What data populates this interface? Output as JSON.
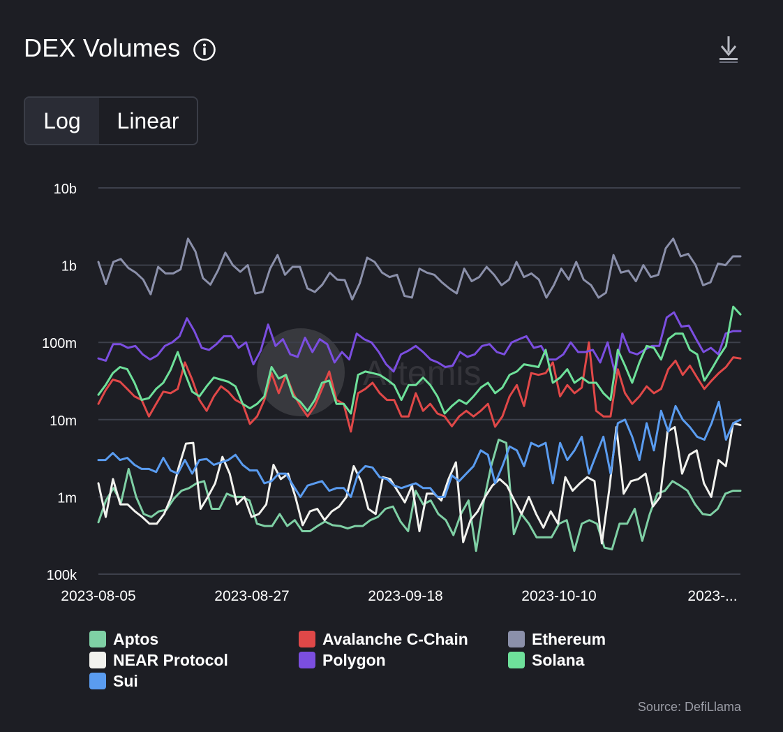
{
  "header": {
    "title": "DEX Volumes",
    "info_icon": "info-circle-icon",
    "download_icon": "download-icon"
  },
  "scale_toggle": {
    "options": [
      "Log",
      "Linear"
    ],
    "selected": "Log"
  },
  "watermark": "Artemis",
  "source": "Source: DefiLlama",
  "chart_data": {
    "type": "line",
    "y_scale": "log",
    "ylim": [
      100000,
      10000000000
    ],
    "y_ticks": [
      {
        "value": 10000000000,
        "label": "10b"
      },
      {
        "value": 1000000000,
        "label": "1b"
      },
      {
        "value": 100000000,
        "label": "100m"
      },
      {
        "value": 10000000,
        "label": "10m"
      },
      {
        "value": 1000000,
        "label": "1m"
      },
      {
        "value": 100000,
        "label": "100k"
      }
    ],
    "x_start": "2023-08-05",
    "x_end": "2023-11-05",
    "x_ticks": [
      {
        "value": "2023-08-05",
        "label": "2023-08-05"
      },
      {
        "value": "2023-08-27",
        "label": "2023-08-27"
      },
      {
        "value": "2023-09-18",
        "label": "2023-09-18"
      },
      {
        "value": "2023-10-10",
        "label": "2023-10-10"
      },
      {
        "value": "2023-11-01",
        "label": "2023-..."
      }
    ],
    "grid": true,
    "legend_position": "bottom",
    "series": [
      {
        "name": "Aptos",
        "color": "#7fd0a5",
        "values": [
          470000,
          900000,
          1300000,
          850000,
          2300000,
          1000000,
          600000,
          550000,
          650000,
          680000,
          950000,
          1200000,
          1300000,
          1500000,
          1600000,
          700000,
          700000,
          1100000,
          1000000,
          1000000,
          900000,
          450000,
          420000,
          420000,
          600000,
          420000,
          500000,
          360000,
          360000,
          420000,
          480000,
          430000,
          420000,
          390000,
          420000,
          420000,
          500000,
          550000,
          700000,
          750000,
          480000,
          360000,
          1200000,
          800000,
          900000,
          600000,
          500000,
          320000,
          600000,
          900000,
          200000,
          850000,
          2500000,
          5500000,
          5000000,
          330000,
          600000,
          450000,
          300000,
          300000,
          300000,
          450000,
          500000,
          200000,
          450000,
          500000,
          450000,
          220000,
          210000,
          450000,
          450000,
          700000,
          270000,
          600000,
          1100000,
          1200000,
          1600000,
          1400000,
          1200000,
          800000,
          600000,
          580000,
          700000,
          1100000,
          1200000,
          1200000
        ]
      },
      {
        "name": "Avalanche C-Chain",
        "color": "#e04848",
        "values": [
          16000000,
          24000000,
          33000000,
          31000000,
          25000000,
          20000000,
          18000000,
          11000000,
          16000000,
          23000000,
          22000000,
          25000000,
          55000000,
          33000000,
          18000000,
          13000000,
          20000000,
          27000000,
          23000000,
          18000000,
          16000000,
          8800000,
          11000000,
          18000000,
          40000000,
          22000000,
          38000000,
          22000000,
          15000000,
          11000000,
          15000000,
          25000000,
          42000000,
          18000000,
          16000000,
          7000000,
          22000000,
          25000000,
          30000000,
          22000000,
          18000000,
          18000000,
          11000000,
          11000000,
          22000000,
          13000000,
          16000000,
          12000000,
          11000000,
          8200000,
          11000000,
          13000000,
          11000000,
          13000000,
          16000000,
          8100000,
          11000000,
          20000000,
          28000000,
          15000000,
          40000000,
          38000000,
          40000000,
          55000000,
          20000000,
          28000000,
          22000000,
          26000000,
          100000000,
          13000000,
          11000000,
          11000000,
          45000000,
          22000000,
          16000000,
          20000000,
          27000000,
          22000000,
          25000000,
          45000000,
          58000000,
          38000000,
          50000000,
          35000000,
          25000000,
          32000000,
          40000000,
          48000000,
          64000000,
          62000000
        ]
      },
      {
        "name": "Ethereum",
        "color": "#8b90aa",
        "values": [
          1100000000,
          570000000,
          1100000000,
          1200000000,
          920000000,
          800000000,
          650000000,
          420000000,
          950000000,
          780000000,
          780000000,
          880000000,
          2200000000,
          1500000000,
          680000000,
          560000000,
          850000000,
          1450000000,
          1000000000,
          820000000,
          1000000000,
          430000000,
          450000000,
          900000000,
          1350000000,
          750000000,
          950000000,
          950000000,
          500000000,
          450000000,
          560000000,
          800000000,
          650000000,
          640000000,
          360000000,
          580000000,
          1250000000,
          1100000000,
          800000000,
          700000000,
          750000000,
          400000000,
          380000000,
          900000000,
          800000000,
          750000000,
          600000000,
          500000000,
          430000000,
          900000000,
          620000000,
          700000000,
          950000000,
          750000000,
          550000000,
          650000000,
          1100000000,
          700000000,
          780000000,
          650000000,
          380000000,
          550000000,
          900000000,
          650000000,
          1100000000,
          650000000,
          550000000,
          380000000,
          440000000,
          1350000000,
          800000000,
          850000000,
          620000000,
          1000000000,
          700000000,
          750000000,
          1650000000,
          2200000000,
          1300000000,
          1400000000,
          1000000000,
          550000000,
          600000000,
          1050000000,
          1000000000,
          1300000000,
          1300000000
        ]
      },
      {
        "name": "NEAR Protocol",
        "color": "#f2f2ee",
        "values": [
          1500000,
          550000,
          1700000,
          800000,
          800000,
          650000,
          550000,
          450000,
          450000,
          600000,
          1000000,
          2400000,
          4900000,
          5000000,
          700000,
          1000000,
          1500000,
          3300000,
          2000000,
          800000,
          1000000,
          550000,
          600000,
          800000,
          2600000,
          1700000,
          2000000,
          1000000,
          430000,
          650000,
          700000,
          500000,
          650000,
          750000,
          1000000,
          2500000,
          1600000,
          700000,
          600000,
          1800000,
          1700000,
          1200000,
          850000,
          1400000,
          360000,
          1100000,
          1100000,
          900000,
          1700000,
          2800000,
          260000,
          500000,
          650000,
          1000000,
          1400000,
          1700000,
          1400000,
          900000,
          600000,
          1000000,
          600000,
          400000,
          650000,
          450000,
          1800000,
          1200000,
          1500000,
          1800000,
          1600000,
          250000,
          1200000,
          8000000,
          1100000,
          1600000,
          1700000,
          2000000,
          750000,
          1000000,
          7000000,
          8000000,
          2000000,
          3500000,
          4000000,
          1500000,
          1000000,
          3000000,
          2500000,
          9000000,
          8500000
        ]
      },
      {
        "name": "Polygon",
        "color": "#7b4ee0",
        "values": [
          62000000,
          58000000,
          95000000,
          95000000,
          85000000,
          90000000,
          70000000,
          60000000,
          68000000,
          90000000,
          100000000,
          120000000,
          205000000,
          140000000,
          85000000,
          80000000,
          95000000,
          120000000,
          120000000,
          85000000,
          100000000,
          52000000,
          78000000,
          170000000,
          90000000,
          110000000,
          70000000,
          65000000,
          115000000,
          75000000,
          110000000,
          95000000,
          55000000,
          75000000,
          60000000,
          130000000,
          110000000,
          100000000,
          75000000,
          52000000,
          42000000,
          70000000,
          78000000,
          90000000,
          75000000,
          60000000,
          55000000,
          48000000,
          50000000,
          75000000,
          65000000,
          70000000,
          90000000,
          95000000,
          75000000,
          70000000,
          100000000,
          110000000,
          120000000,
          85000000,
          90000000,
          60000000,
          60000000,
          70000000,
          100000000,
          75000000,
          75000000,
          80000000,
          55000000,
          100000000,
          40000000,
          130000000,
          75000000,
          70000000,
          80000000,
          90000000,
          90000000,
          210000000,
          245000000,
          160000000,
          165000000,
          110000000,
          75000000,
          85000000,
          70000000,
          130000000,
          140000000,
          140000000
        ]
      },
      {
        "name": "Solana",
        "color": "#6ee09a",
        "values": [
          21000000,
          28000000,
          40000000,
          48000000,
          45000000,
          30000000,
          18000000,
          19000000,
          25000000,
          30000000,
          44000000,
          75000000,
          40000000,
          23000000,
          20000000,
          27000000,
          35000000,
          33000000,
          31000000,
          27000000,
          16000000,
          14000000,
          16000000,
          20000000,
          48000000,
          34000000,
          38000000,
          20000000,
          17000000,
          13000000,
          18000000,
          30000000,
          32000000,
          16000000,
          16000000,
          12000000,
          38000000,
          42000000,
          40000000,
          38000000,
          33000000,
          28000000,
          18000000,
          28000000,
          28000000,
          35000000,
          28000000,
          20000000,
          12000000,
          15000000,
          18000000,
          16000000,
          20000000,
          26000000,
          30000000,
          22000000,
          26000000,
          38000000,
          42000000,
          52000000,
          50000000,
          48000000,
          80000000,
          30000000,
          35000000,
          45000000,
          30000000,
          35000000,
          30000000,
          30000000,
          22000000,
          18000000,
          80000000,
          50000000,
          30000000,
          55000000,
          90000000,
          85000000,
          60000000,
          110000000,
          130000000,
          130000000,
          80000000,
          70000000,
          32000000,
          45000000,
          65000000,
          90000000,
          290000000,
          230000000
        ]
      },
      {
        "name": "Sui",
        "color": "#5a9cf0",
        "values": [
          3000000,
          3000000,
          3700000,
          3000000,
          3200000,
          2600000,
          2300000,
          2300000,
          2100000,
          3200000,
          2200000,
          2000000,
          3000000,
          2000000,
          3000000,
          3100000,
          2600000,
          2800000,
          3000000,
          3500000,
          2600000,
          2200000,
          2200000,
          1500000,
          1600000,
          2000000,
          2000000,
          1400000,
          1000000,
          1400000,
          1500000,
          1600000,
          1200000,
          1300000,
          1300000,
          1000000,
          2000000,
          2500000,
          2400000,
          1800000,
          1700000,
          1400000,
          1300000,
          1400000,
          1500000,
          1300000,
          1300000,
          1000000,
          1000000,
          1900000,
          1600000,
          2000000,
          2500000,
          4000000,
          3500000,
          1500000,
          2500000,
          4500000,
          4000000,
          2500000,
          5000000,
          4500000,
          5000000,
          1500000,
          5000000,
          3000000,
          4000000,
          6000000,
          2000000,
          3500000,
          6000000,
          2000000,
          9000000,
          10000000,
          6000000,
          3000000,
          9000000,
          4000000,
          13000000,
          7000000,
          15000000,
          10000000,
          8000000,
          6000000,
          5500000,
          9000000,
          17000000,
          5500000,
          9000000,
          10000000
        ]
      }
    ]
  }
}
